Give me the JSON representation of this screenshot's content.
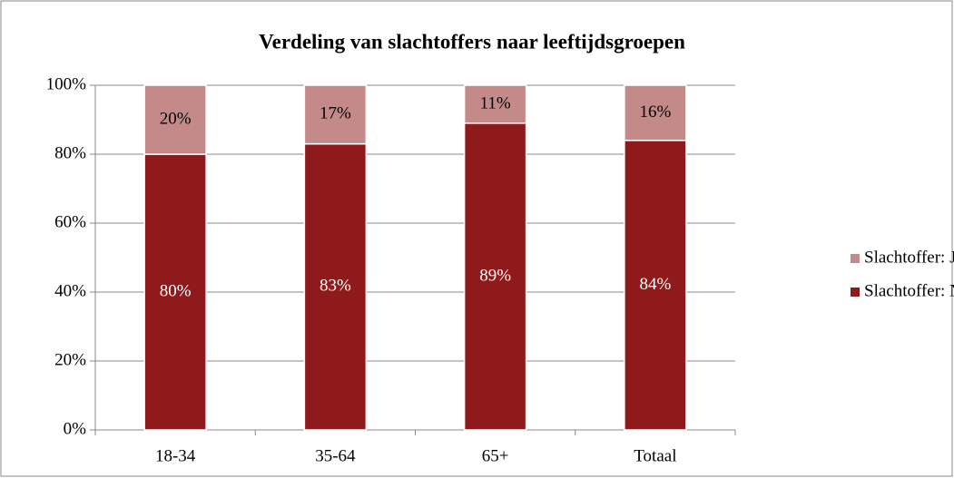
{
  "chart_data": {
    "type": "stacked_bar",
    "title": "Verdeling van slachtoffers naar leeftijdsgroepen",
    "categories": [
      "18-34",
      "35-64",
      "65+",
      "Totaal"
    ],
    "series": [
      {
        "name": "Slachtoffer: Nee",
        "color": "#8e1a1c",
        "values": [
          80,
          83,
          89,
          84
        ],
        "value_labels": [
          "80%",
          "83%",
          "89%",
          "84%"
        ]
      },
      {
        "name": "Slachtoffer: Ja",
        "color": "#c48989",
        "values": [
          20,
          17,
          11,
          16
        ],
        "value_labels": [
          "20%",
          "17%",
          "11%",
          "16%"
        ]
      }
    ],
    "ylim": [
      0,
      100
    ],
    "yticks": [
      {
        "value": 0,
        "label": "0%"
      },
      {
        "value": 20,
        "label": "20%"
      },
      {
        "value": 40,
        "label": "40%"
      },
      {
        "value": 60,
        "label": "60%"
      },
      {
        "value": 80,
        "label": "80%"
      },
      {
        "value": 100,
        "label": "100%"
      }
    ],
    "grid": true,
    "legend": "right"
  }
}
